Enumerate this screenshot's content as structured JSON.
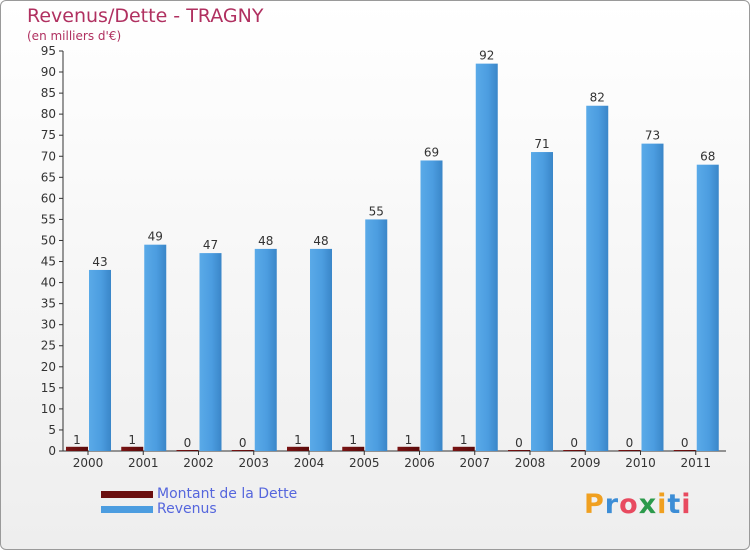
{
  "chart_data": {
    "type": "bar",
    "title": "Revenus/Dette - TRAGNY",
    "subtitle": "(en milliers d'€)",
    "categories": [
      "2000",
      "2001",
      "2002",
      "2003",
      "2004",
      "2005",
      "2006",
      "2007",
      "2008",
      "2009",
      "2010",
      "2011"
    ],
    "series": [
      {
        "name": "Montant de la Dette",
        "color": "#6b0f0f",
        "values": [
          1,
          1,
          0,
          0,
          1,
          1,
          1,
          1,
          0,
          0,
          0,
          0
        ]
      },
      {
        "name": "Revenus",
        "color": "#4c9de0",
        "values": [
          43,
          49,
          47,
          48,
          48,
          55,
          69,
          92,
          71,
          82,
          73,
          68
        ]
      }
    ],
    "ylim": [
      0,
      95
    ],
    "yticks": [
      0,
      5,
      10,
      15,
      20,
      25,
      30,
      35,
      40,
      45,
      50,
      55,
      60,
      65,
      70,
      75,
      80,
      85,
      90,
      95
    ],
    "grid": false,
    "legend": "bottom-left"
  },
  "logo_text": "Proxiti",
  "colors": {
    "title": "#b03060",
    "legend_text": "#5566dd",
    "axis": "#333333",
    "logo": [
      "#f0a020",
      "#3c8dd6",
      "#e84a5f",
      "#2c9a4b",
      "#f0a020",
      "#3c8dd6",
      "#e84a5f"
    ]
  }
}
